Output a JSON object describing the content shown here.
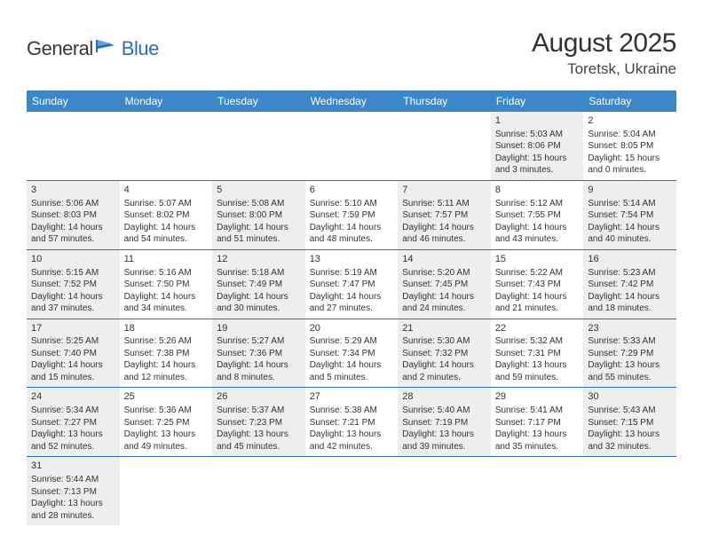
{
  "logo": {
    "part1": "General",
    "part2": "Blue"
  },
  "title": "August 2025",
  "location": "Toretsk, Ukraine",
  "colors": {
    "header_bg": "#3b87c8",
    "header_text": "#ffffff",
    "rule": "#2a6fb5",
    "shade": "#eeeeee",
    "text": "#333333",
    "logo_dark": "#3a3a3a",
    "logo_blue": "#2a6fb5"
  },
  "day_headers": [
    "Sunday",
    "Monday",
    "Tuesday",
    "Wednesday",
    "Thursday",
    "Friday",
    "Saturday"
  ],
  "weeks": [
    [
      {
        "blank": true
      },
      {
        "blank": true
      },
      {
        "blank": true
      },
      {
        "blank": true
      },
      {
        "blank": true
      },
      {
        "n": "1",
        "shade": true,
        "sunrise": "Sunrise: 5:03 AM",
        "sunset": "Sunset: 8:06 PM",
        "dl1": "Daylight: 15 hours",
        "dl2": "and 3 minutes."
      },
      {
        "n": "2",
        "shade": false,
        "sunrise": "Sunrise: 5:04 AM",
        "sunset": "Sunset: 8:05 PM",
        "dl1": "Daylight: 15 hours",
        "dl2": "and 0 minutes."
      }
    ],
    [
      {
        "n": "3",
        "shade": true,
        "sunrise": "Sunrise: 5:06 AM",
        "sunset": "Sunset: 8:03 PM",
        "dl1": "Daylight: 14 hours",
        "dl2": "and 57 minutes."
      },
      {
        "n": "4",
        "shade": false,
        "sunrise": "Sunrise: 5:07 AM",
        "sunset": "Sunset: 8:02 PM",
        "dl1": "Daylight: 14 hours",
        "dl2": "and 54 minutes."
      },
      {
        "n": "5",
        "shade": true,
        "sunrise": "Sunrise: 5:08 AM",
        "sunset": "Sunset: 8:00 PM",
        "dl1": "Daylight: 14 hours",
        "dl2": "and 51 minutes."
      },
      {
        "n": "6",
        "shade": false,
        "sunrise": "Sunrise: 5:10 AM",
        "sunset": "Sunset: 7:59 PM",
        "dl1": "Daylight: 14 hours",
        "dl2": "and 48 minutes."
      },
      {
        "n": "7",
        "shade": true,
        "sunrise": "Sunrise: 5:11 AM",
        "sunset": "Sunset: 7:57 PM",
        "dl1": "Daylight: 14 hours",
        "dl2": "and 46 minutes."
      },
      {
        "n": "8",
        "shade": false,
        "sunrise": "Sunrise: 5:12 AM",
        "sunset": "Sunset: 7:55 PM",
        "dl1": "Daylight: 14 hours",
        "dl2": "and 43 minutes."
      },
      {
        "n": "9",
        "shade": true,
        "sunrise": "Sunrise: 5:14 AM",
        "sunset": "Sunset: 7:54 PM",
        "dl1": "Daylight: 14 hours",
        "dl2": "and 40 minutes."
      }
    ],
    [
      {
        "n": "10",
        "shade": true,
        "sunrise": "Sunrise: 5:15 AM",
        "sunset": "Sunset: 7:52 PM",
        "dl1": "Daylight: 14 hours",
        "dl2": "and 37 minutes."
      },
      {
        "n": "11",
        "shade": false,
        "sunrise": "Sunrise: 5:16 AM",
        "sunset": "Sunset: 7:50 PM",
        "dl1": "Daylight: 14 hours",
        "dl2": "and 34 minutes."
      },
      {
        "n": "12",
        "shade": true,
        "sunrise": "Sunrise: 5:18 AM",
        "sunset": "Sunset: 7:49 PM",
        "dl1": "Daylight: 14 hours",
        "dl2": "and 30 minutes."
      },
      {
        "n": "13",
        "shade": false,
        "sunrise": "Sunrise: 5:19 AM",
        "sunset": "Sunset: 7:47 PM",
        "dl1": "Daylight: 14 hours",
        "dl2": "and 27 minutes."
      },
      {
        "n": "14",
        "shade": true,
        "sunrise": "Sunrise: 5:20 AM",
        "sunset": "Sunset: 7:45 PM",
        "dl1": "Daylight: 14 hours",
        "dl2": "and 24 minutes."
      },
      {
        "n": "15",
        "shade": false,
        "sunrise": "Sunrise: 5:22 AM",
        "sunset": "Sunset: 7:43 PM",
        "dl1": "Daylight: 14 hours",
        "dl2": "and 21 minutes."
      },
      {
        "n": "16",
        "shade": true,
        "sunrise": "Sunrise: 5:23 AM",
        "sunset": "Sunset: 7:42 PM",
        "dl1": "Daylight: 14 hours",
        "dl2": "and 18 minutes."
      }
    ],
    [
      {
        "n": "17",
        "shade": true,
        "sunrise": "Sunrise: 5:25 AM",
        "sunset": "Sunset: 7:40 PM",
        "dl1": "Daylight: 14 hours",
        "dl2": "and 15 minutes."
      },
      {
        "n": "18",
        "shade": false,
        "sunrise": "Sunrise: 5:26 AM",
        "sunset": "Sunset: 7:38 PM",
        "dl1": "Daylight: 14 hours",
        "dl2": "and 12 minutes."
      },
      {
        "n": "19",
        "shade": true,
        "sunrise": "Sunrise: 5:27 AM",
        "sunset": "Sunset: 7:36 PM",
        "dl1": "Daylight: 14 hours",
        "dl2": "and 8 minutes."
      },
      {
        "n": "20",
        "shade": false,
        "sunrise": "Sunrise: 5:29 AM",
        "sunset": "Sunset: 7:34 PM",
        "dl1": "Daylight: 14 hours",
        "dl2": "and 5 minutes."
      },
      {
        "n": "21",
        "shade": true,
        "sunrise": "Sunrise: 5:30 AM",
        "sunset": "Sunset: 7:32 PM",
        "dl1": "Daylight: 14 hours",
        "dl2": "and 2 minutes."
      },
      {
        "n": "22",
        "shade": false,
        "sunrise": "Sunrise: 5:32 AM",
        "sunset": "Sunset: 7:31 PM",
        "dl1": "Daylight: 13 hours",
        "dl2": "and 59 minutes."
      },
      {
        "n": "23",
        "shade": true,
        "sunrise": "Sunrise: 5:33 AM",
        "sunset": "Sunset: 7:29 PM",
        "dl1": "Daylight: 13 hours",
        "dl2": "and 55 minutes."
      }
    ],
    [
      {
        "n": "24",
        "shade": true,
        "sunrise": "Sunrise: 5:34 AM",
        "sunset": "Sunset: 7:27 PM",
        "dl1": "Daylight: 13 hours",
        "dl2": "and 52 minutes."
      },
      {
        "n": "25",
        "shade": false,
        "sunrise": "Sunrise: 5:36 AM",
        "sunset": "Sunset: 7:25 PM",
        "dl1": "Daylight: 13 hours",
        "dl2": "and 49 minutes."
      },
      {
        "n": "26",
        "shade": true,
        "sunrise": "Sunrise: 5:37 AM",
        "sunset": "Sunset: 7:23 PM",
        "dl1": "Daylight: 13 hours",
        "dl2": "and 45 minutes."
      },
      {
        "n": "27",
        "shade": false,
        "sunrise": "Sunrise: 5:38 AM",
        "sunset": "Sunset: 7:21 PM",
        "dl1": "Daylight: 13 hours",
        "dl2": "and 42 minutes."
      },
      {
        "n": "28",
        "shade": true,
        "sunrise": "Sunrise: 5:40 AM",
        "sunset": "Sunset: 7:19 PM",
        "dl1": "Daylight: 13 hours",
        "dl2": "and 39 minutes."
      },
      {
        "n": "29",
        "shade": false,
        "sunrise": "Sunrise: 5:41 AM",
        "sunset": "Sunset: 7:17 PM",
        "dl1": "Daylight: 13 hours",
        "dl2": "and 35 minutes."
      },
      {
        "n": "30",
        "shade": true,
        "sunrise": "Sunrise: 5:43 AM",
        "sunset": "Sunset: 7:15 PM",
        "dl1": "Daylight: 13 hours",
        "dl2": "and 32 minutes."
      }
    ],
    [
      {
        "n": "31",
        "shade": true,
        "sunrise": "Sunrise: 5:44 AM",
        "sunset": "Sunset: 7:13 PM",
        "dl1": "Daylight: 13 hours",
        "dl2": "and 28 minutes."
      },
      {
        "blank": true
      },
      {
        "blank": true
      },
      {
        "blank": true
      },
      {
        "blank": true
      },
      {
        "blank": true
      },
      {
        "blank": true
      }
    ]
  ]
}
